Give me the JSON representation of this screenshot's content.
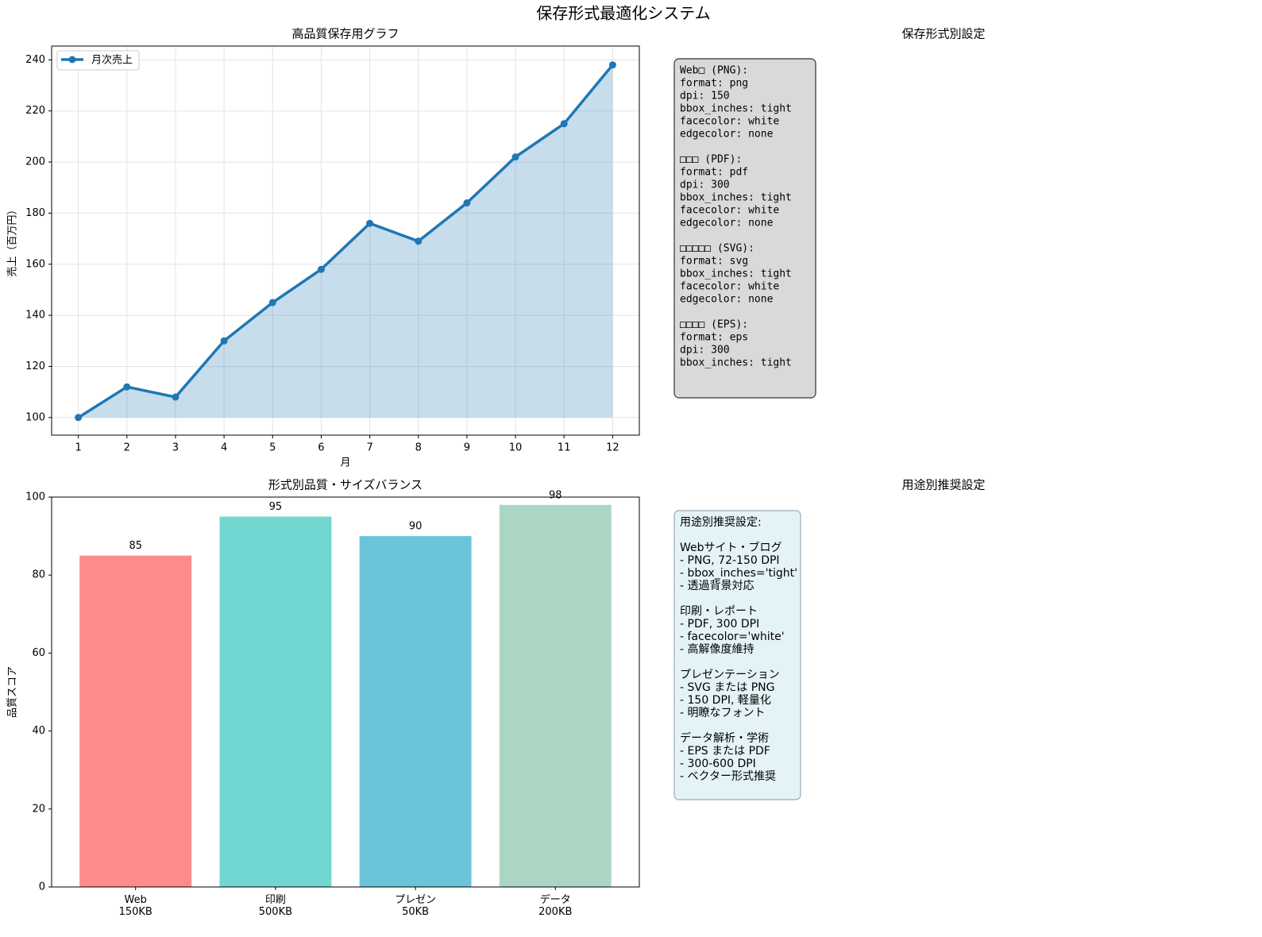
{
  "title": "保存形式最適化システム",
  "chart_data": [
    {
      "type": "line",
      "title": "高品質保存用グラフ",
      "x_label": "月",
      "y_label": "売上（百万円）",
      "x": [
        1,
        2,
        3,
        4,
        5,
        6,
        7,
        8,
        9,
        10,
        11,
        12
      ],
      "series": [
        {
          "name": "月次売上",
          "color": "#1f77b4",
          "values": [
            100,
            112,
            108,
            130,
            145,
            158,
            176,
            169,
            184,
            202,
            215,
            238
          ]
        }
      ],
      "xlim": [
        0.45,
        12.55
      ],
      "xticks": [
        1,
        2,
        3,
        4,
        5,
        6,
        7,
        8,
        9,
        10,
        11,
        12
      ],
      "ylim": [
        93.1,
        245.4
      ],
      "yticks": [
        100,
        120,
        140,
        160,
        180,
        200,
        220,
        240
      ],
      "grid": true,
      "legend": "upper left",
      "fill_alpha": 0.25
    },
    {
      "type": "text",
      "title": "保存形式別設定",
      "box_color": "#d9d9d9",
      "font": "mono",
      "sections": [
        {
          "lines": [
            "Web□ (PNG):",
            "  format: png",
            "  dpi: 150",
            "  bbox_inches: tight",
            "  facecolor: white",
            "  edgecolor: none"
          ]
        },
        {
          "lines": [
            "□□□ (PDF):",
            "  format: pdf",
            "  dpi: 300",
            "  bbox_inches: tight",
            "  facecolor: white",
            "  edgecolor: none"
          ]
        },
        {
          "lines": [
            "□□□□□ (SVG):",
            "  format: svg",
            "  bbox_inches: tight",
            "  facecolor: white",
            "  edgecolor: none"
          ]
        },
        {
          "lines": [
            "□□□□ (EPS):",
            "  format: eps",
            "  dpi: 300",
            "  bbox_inches: tight"
          ]
        }
      ]
    },
    {
      "type": "bar",
      "title": "形式別品質・サイズバランス",
      "y_label": "品質スコア",
      "categories": [
        "Web\n150KB",
        "印刷\n500KB",
        "プレゼン\n50KB",
        "データ\n200KB"
      ],
      "values": [
        85,
        95,
        90,
        98
      ],
      "colors": [
        "#ff8a8a",
        "#72d7d0",
        "#6bc4da",
        "#acd6c4"
      ],
      "xlim": [
        -0.6,
        3.6
      ],
      "ylim": [
        0,
        100
      ],
      "yticks": [
        0,
        20,
        40,
        60,
        80,
        100
      ],
      "grid": false
    },
    {
      "type": "text",
      "title": "用途別推奨設定",
      "box_color": "#e4f3f7",
      "font": "sans",
      "sections": [
        {
          "lines": [
            "用途別推奨設定:"
          ]
        },
        {
          "lines": [
            "Webサイト・ブログ",
            "- PNG, 72-150 DPI",
            "- bbox_inches='tight'",
            "- 透過背景対応"
          ]
        },
        {
          "lines": [
            "印刷・レポート",
            "- PDF, 300 DPI",
            "- facecolor='white'",
            "- 高解像度維持"
          ]
        },
        {
          "lines": [
            "プレゼンテーション",
            "- SVG または PNG",
            "- 150 DPI, 軽量化",
            "- 明瞭なフォント"
          ]
        },
        {
          "lines": [
            "データ解析・学術",
            "- EPS または PDF",
            "- 300-600 DPI",
            "- ベクター形式推奨"
          ]
        }
      ]
    }
  ]
}
